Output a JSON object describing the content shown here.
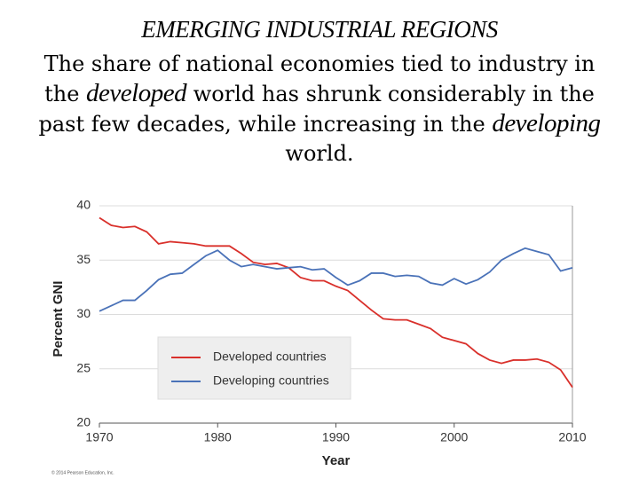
{
  "slide": {
    "title": "EMERGING INDUSTRIAL REGIONS",
    "body": [
      {
        "text": "The share of national economies tied to industry in the ",
        "italic": false
      },
      {
        "text": "developed",
        "italic": true
      },
      {
        "text": " world has shrunk considerably in the past few decades, while increasing in the ",
        "italic": false
      },
      {
        "text": "developing",
        "italic": true
      },
      {
        "text": " world.",
        "italic": false
      }
    ],
    "credit": "© 2014 Pearson Education, Inc."
  },
  "chart_data": {
    "type": "line",
    "x_label": "Year",
    "y_label": "Percent GNI",
    "x": [
      1970,
      1971,
      1972,
      1973,
      1974,
      1975,
      1976,
      1977,
      1978,
      1979,
      1980,
      1981,
      1982,
      1983,
      1984,
      1985,
      1986,
      1987,
      1988,
      1989,
      1990,
      1991,
      1992,
      1993,
      1994,
      1995,
      1996,
      1997,
      1998,
      1999,
      2000,
      2001,
      2002,
      2003,
      2004,
      2005,
      2006,
      2007,
      2008,
      2009,
      2010
    ],
    "series": [
      {
        "name": "Developed countries",
        "color": "#d9302b",
        "values": [
          38.9,
          38.2,
          38.0,
          38.1,
          37.6,
          36.5,
          36.7,
          36.6,
          36.5,
          36.3,
          36.3,
          36.3,
          35.6,
          34.8,
          34.6,
          34.7,
          34.3,
          33.4,
          33.1,
          33.1,
          32.6,
          32.2,
          31.3,
          30.4,
          29.6,
          29.5,
          29.5,
          29.1,
          28.7,
          27.9,
          27.6,
          27.3,
          26.4,
          25.8,
          25.5,
          25.8,
          25.8,
          25.9,
          25.6,
          24.9,
          23.3
        ]
      },
      {
        "name": "Developing countries",
        "color": "#4a72b8",
        "values": [
          30.3,
          30.8,
          31.3,
          31.3,
          32.2,
          33.2,
          33.7,
          33.8,
          34.6,
          35.4,
          35.9,
          35.0,
          34.4,
          34.6,
          34.4,
          34.2,
          34.3,
          34.4,
          34.1,
          34.2,
          33.4,
          32.7,
          33.1,
          33.8,
          33.8,
          33.5,
          33.6,
          33.5,
          32.9,
          32.7,
          33.3,
          32.8,
          33.2,
          33.9,
          35.0,
          35.6,
          36.1,
          35.8,
          35.5,
          34.0,
          34.3
        ]
      }
    ],
    "xlim": [
      1970,
      2010
    ],
    "ylim": [
      20,
      40
    ],
    "xticks": [
      1970,
      1980,
      1990,
      2000,
      2010
    ],
    "yticks": [
      20,
      25,
      30,
      35,
      40
    ],
    "grid": true,
    "legend": "lower left"
  }
}
